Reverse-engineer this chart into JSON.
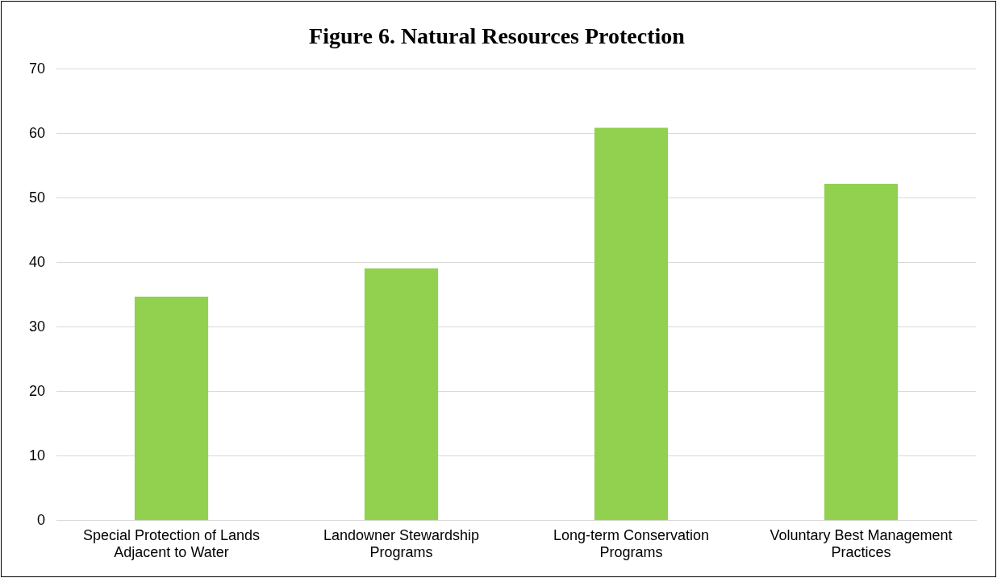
{
  "chart_data": {
    "type": "bar",
    "title": "Figure 6. Natural Resources Protection",
    "categories": [
      "Special Protection of Lands Adjacent to Water",
      "Landowner Stewardship Programs",
      "Long-term Conservation Programs",
      "Voluntary Best Management Practices"
    ],
    "values": [
      34.7,
      39.1,
      60.9,
      52.2
    ],
    "color": "#92d050",
    "ylim": [
      0,
      70
    ],
    "yticks": [
      0,
      10,
      20,
      30,
      40,
      50,
      60,
      70
    ],
    "grid": "y",
    "legend": false
  }
}
